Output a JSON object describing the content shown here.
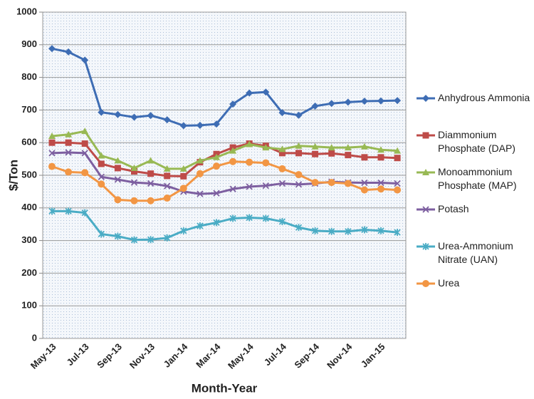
{
  "chart_data": {
    "type": "line",
    "xlabel": "Month-Year",
    "ylabel": "$/Ton",
    "categories": [
      "May-13",
      null,
      "Jul-13",
      null,
      "Sep-13",
      null,
      "Nov-13",
      null,
      "Jan-14",
      null,
      "Mar-14",
      null,
      "May-14",
      null,
      "Jul-14",
      null,
      "Sep-14",
      null,
      "Nov-14",
      null,
      "Jan-15",
      null
    ],
    "ylim": [
      0,
      1000
    ],
    "yticks": [
      0,
      100,
      200,
      300,
      400,
      500,
      600,
      700,
      800,
      900,
      1000
    ],
    "grid": true,
    "legend": "right",
    "series": [
      {
        "name": "Anhydrous Ammonia",
        "color": "#3e6db4",
        "marker": "diamond",
        "values": [
          888,
          878,
          853,
          693,
          686,
          678,
          683,
          670,
          652,
          653,
          657,
          718,
          752,
          755,
          692,
          684,
          712,
          720,
          724,
          727,
          728,
          729
        ]
      },
      {
        "name": "Diammonium Phosphate (DAP)",
        "color": "#be4b48",
        "marker": "square",
        "values": [
          600,
          600,
          597,
          535,
          522,
          512,
          505,
          498,
          497,
          540,
          565,
          585,
          597,
          590,
          568,
          568,
          565,
          567,
          562,
          555,
          555,
          553
        ]
      },
      {
        "name": "Monoammonium Phosphate (MAP)",
        "color": "#98b954",
        "marker": "triangle",
        "values": [
          620,
          625,
          635,
          560,
          545,
          522,
          545,
          520,
          520,
          545,
          555,
          575,
          595,
          585,
          580,
          590,
          588,
          585,
          585,
          588,
          578,
          575
        ]
      },
      {
        "name": "Potash",
        "color": "#7d5fa0",
        "marker": "x",
        "values": [
          568,
          570,
          568,
          495,
          487,
          478,
          475,
          467,
          450,
          443,
          445,
          458,
          465,
          468,
          475,
          472,
          475,
          480,
          478,
          477,
          477,
          475
        ]
      },
      {
        "name": "Urea-Ammonium Nitrate (UAN)",
        "color": "#4aacc5",
        "marker": "star",
        "values": [
          390,
          390,
          385,
          320,
          313,
          302,
          303,
          308,
          330,
          345,
          355,
          368,
          370,
          368,
          358,
          340,
          330,
          328,
          328,
          333,
          330,
          325
        ]
      },
      {
        "name": "Urea",
        "color": "#f29644",
        "marker": "circle",
        "values": [
          527,
          510,
          508,
          473,
          425,
          422,
          422,
          430,
          460,
          505,
          528,
          542,
          540,
          538,
          520,
          502,
          478,
          478,
          475,
          455,
          458,
          455
        ]
      }
    ]
  }
}
